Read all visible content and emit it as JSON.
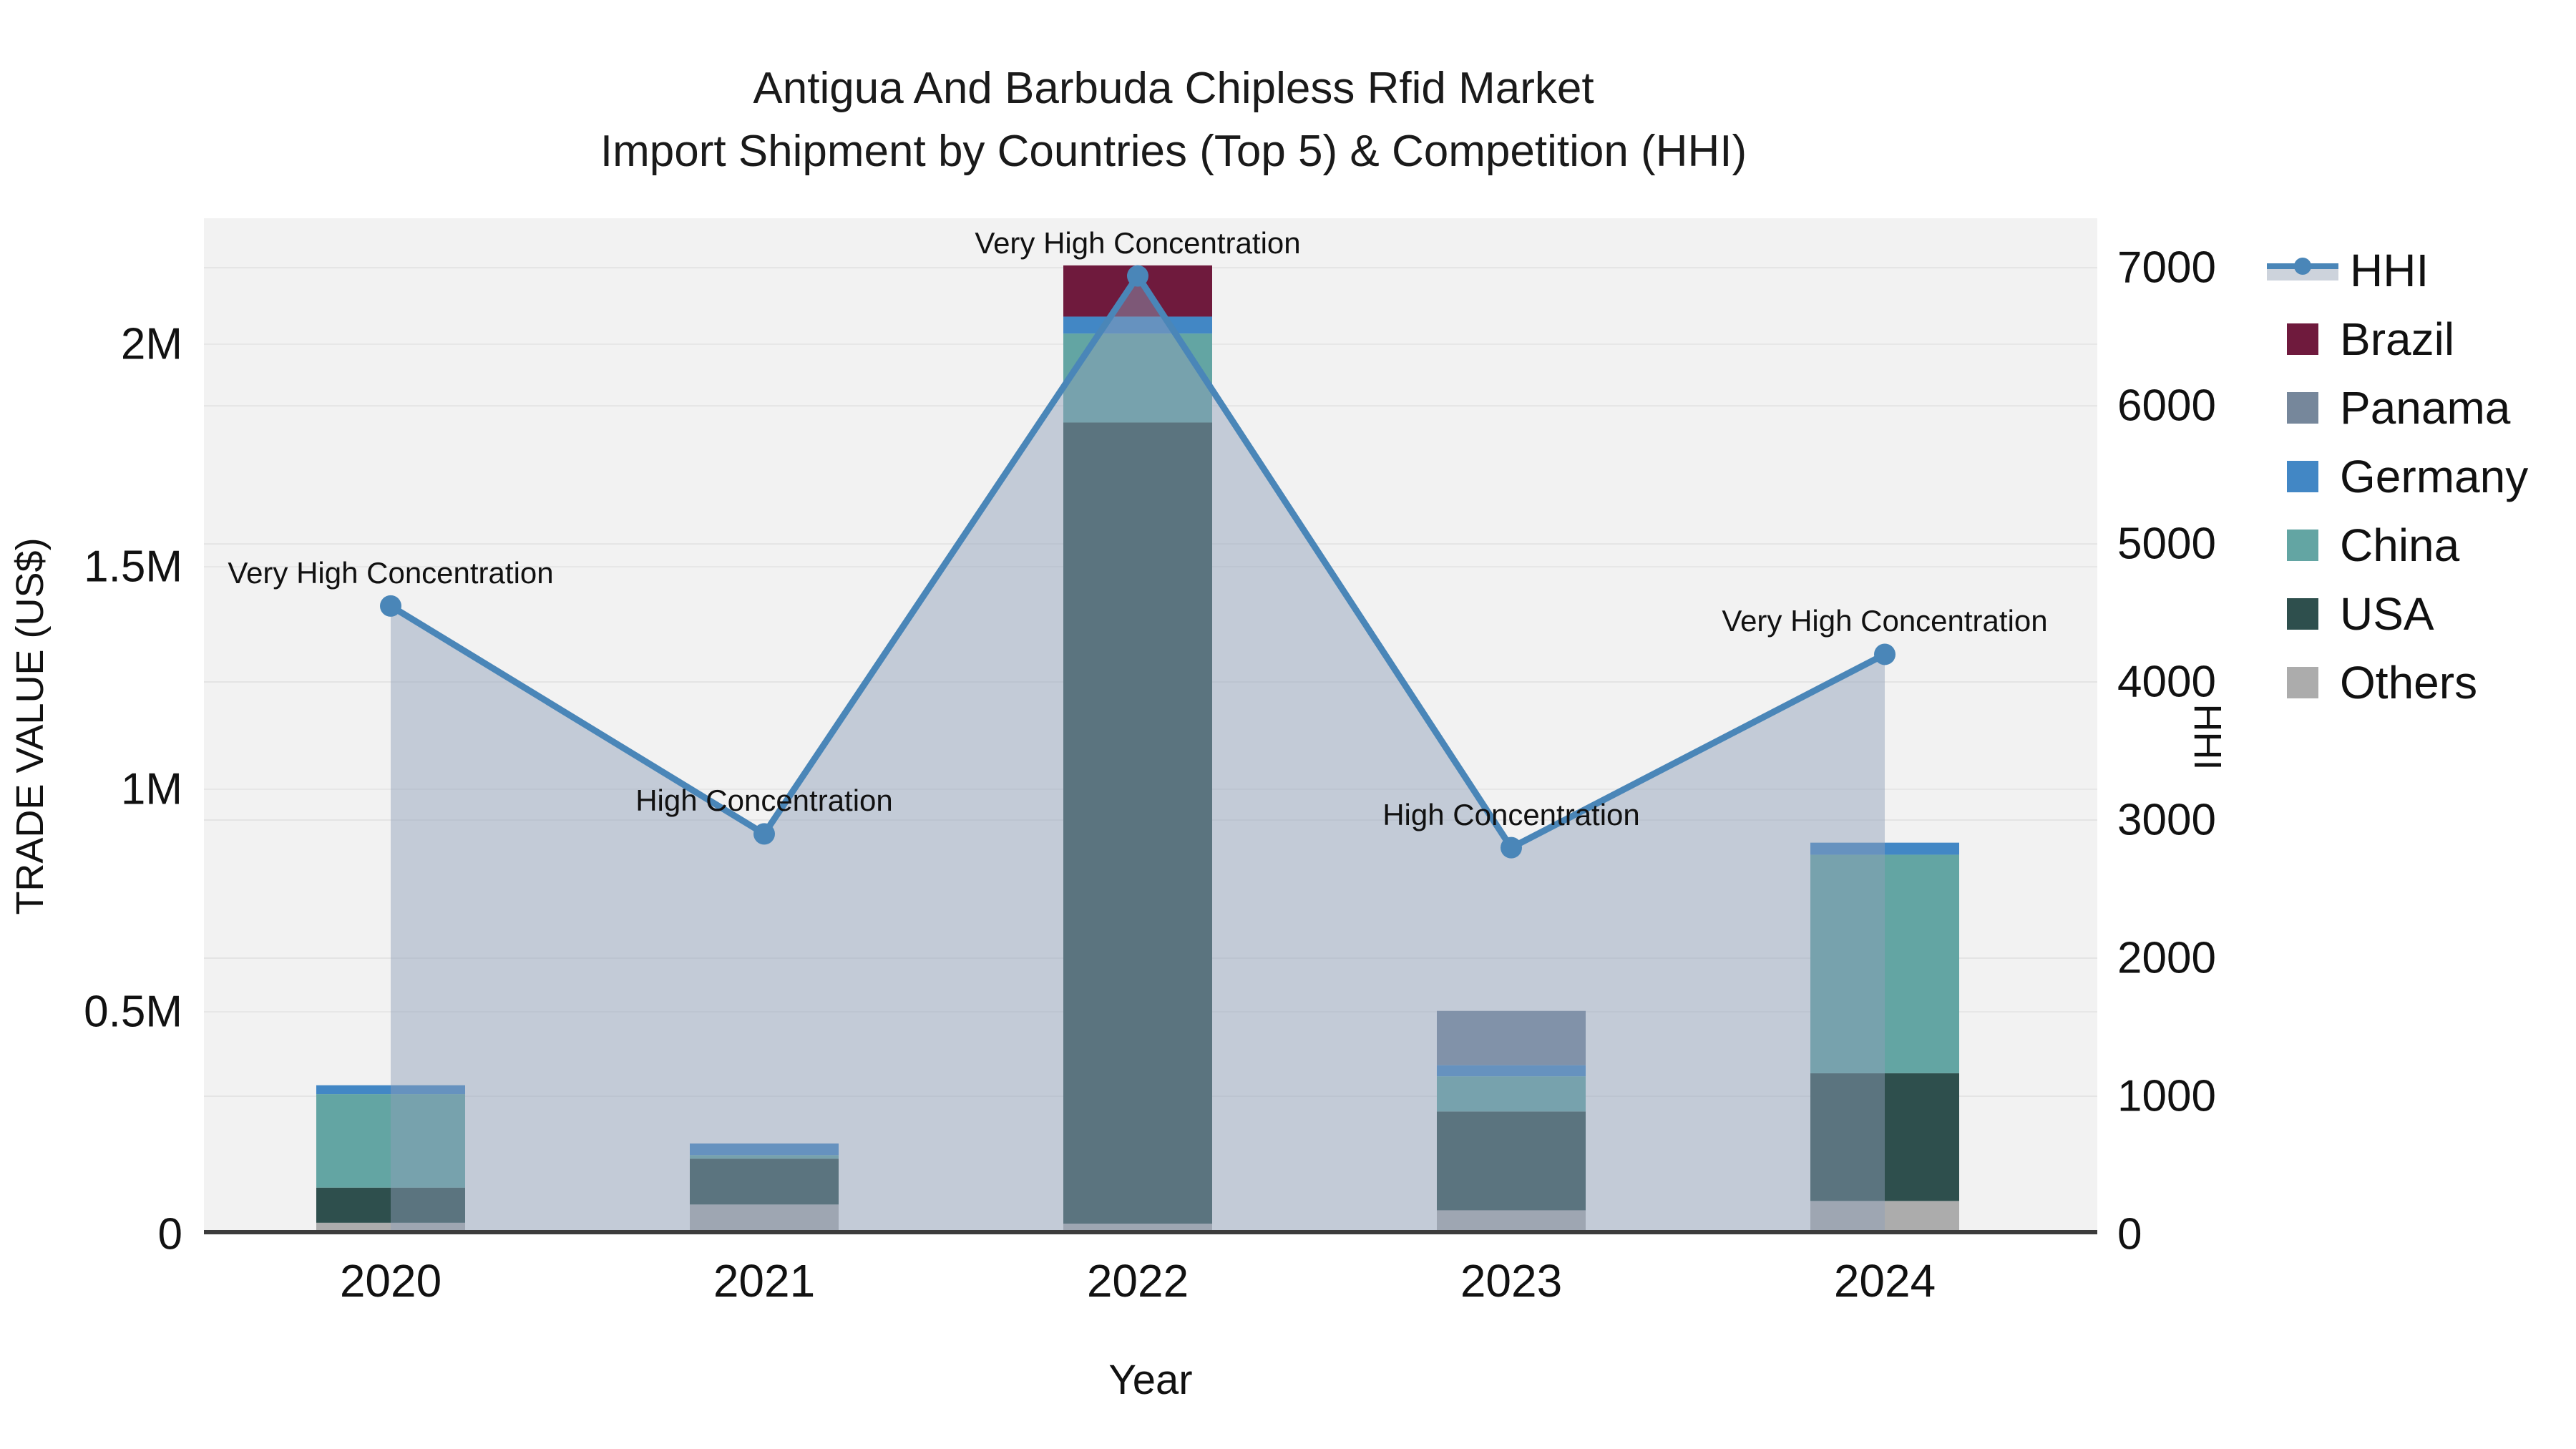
{
  "title": {
    "line1": "Antigua And Barbuda Chipless Rfid Market",
    "line2": "Import Shipment by Countries (Top 5) & Competition (HHI)"
  },
  "axes": {
    "x_label": "Year",
    "y_left_label": "TRADE VALUE (US$)",
    "y_right_label": "HHI"
  },
  "legend": {
    "items": [
      {
        "label": "HHI",
        "type": "line",
        "color": "#4A86B8",
        "band_color": "#CDD3DC"
      },
      {
        "label": "Brazil",
        "type": "swatch",
        "color": "#6F1A3D"
      },
      {
        "label": "Panama",
        "type": "swatch",
        "color": "#76879B"
      },
      {
        "label": "Germany",
        "type": "swatch",
        "color": "#4287C5"
      },
      {
        "label": "China",
        "type": "swatch",
        "color": "#63A5A3"
      },
      {
        "label": "USA",
        "type": "swatch",
        "color": "#2E4F4D"
      },
      {
        "label": "Others",
        "type": "swatch",
        "color": "#ACACAC"
      }
    ]
  },
  "chart_data": {
    "type": "combo_stacked_bar_line",
    "title": "Antigua And Barbuda Chipless Rfid Market — Import Shipment by Countries (Top 5) & Competition (HHI)",
    "categories": [
      "2020",
      "2021",
      "2022",
      "2023",
      "2024"
    ],
    "bar_series": [
      {
        "name": "Others",
        "color": "#ACACAC",
        "values": [
          26000,
          67000,
          24000,
          54000,
          75000
        ]
      },
      {
        "name": "USA",
        "color": "#2E4F4D",
        "values": [
          79000,
          103000,
          1800000,
          222000,
          287000
        ]
      },
      {
        "name": "China",
        "color": "#63A5A3",
        "values": [
          210000,
          8000,
          200000,
          79000,
          491000
        ]
      },
      {
        "name": "Germany",
        "color": "#4287C5",
        "values": [
          20000,
          26000,
          38000,
          25000,
          27000
        ]
      },
      {
        "name": "Panama",
        "color": "#76879B",
        "values": [
          0,
          0,
          0,
          122000,
          0
        ]
      },
      {
        "name": "Brazil",
        "color": "#6F1A3D",
        "values": [
          0,
          0,
          115000,
          0,
          0
        ]
      }
    ],
    "bar_totals": [
      335000,
      204000,
      2177000,
      502000,
      880000
    ],
    "line_series": {
      "name": "HHI",
      "color": "#4A86B8",
      "area_fill": "rgba(143,160,184,0.47)",
      "values": [
        4550,
        2900,
        6940,
        2800,
        4200
      ]
    },
    "annotations": [
      {
        "category": "2020",
        "text": "Very High Concentration"
      },
      {
        "category": "2021",
        "text": "High Concentration"
      },
      {
        "category": "2022",
        "text": "Very High Concentration"
      },
      {
        "category": "2023",
        "text": "High Concentration"
      },
      {
        "category": "2024",
        "text": "Very High Concentration"
      }
    ],
    "y_left": {
      "label": "TRADE VALUE (US$)",
      "max": 2283000,
      "tick_values": [
        0,
        500000,
        1000000,
        1500000,
        2000000
      ],
      "tick_labels": [
        "0",
        "0.5M",
        "1M",
        "1.5M",
        "2M"
      ]
    },
    "y_right": {
      "label": "HHI",
      "max": 7358,
      "tick_values": [
        0,
        1000,
        2000,
        3000,
        4000,
        5000,
        6000,
        7000
      ],
      "tick_labels": [
        "0",
        "1000",
        "2000",
        "3000",
        "4000",
        "5000",
        "6000",
        "7000"
      ]
    },
    "grid": true,
    "legend_position": "right",
    "plot_background": "#f2f2f2"
  }
}
